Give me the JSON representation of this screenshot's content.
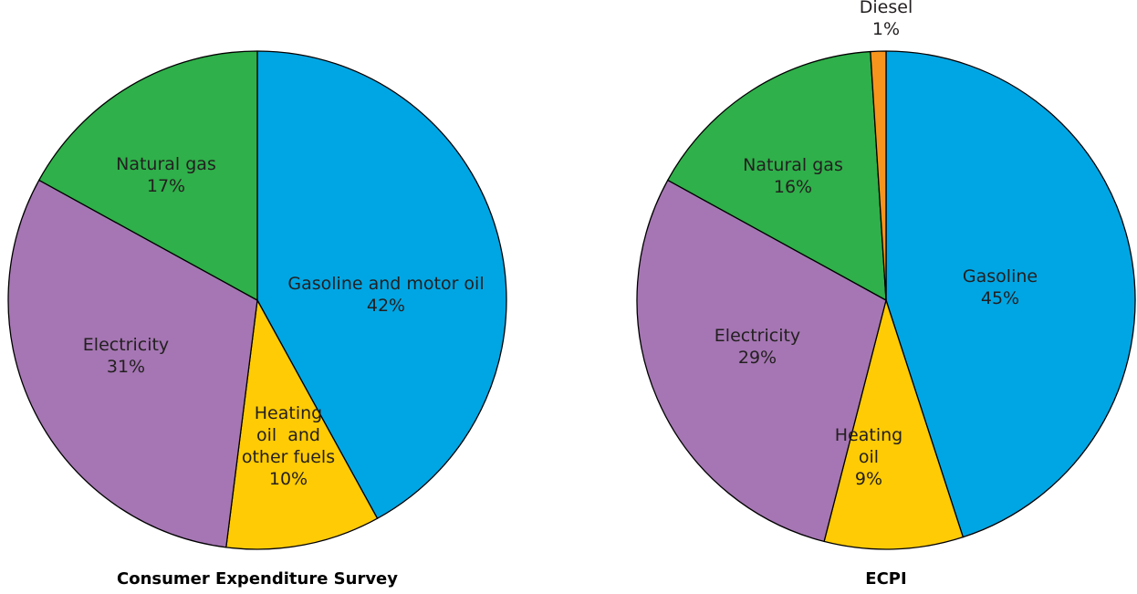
{
  "chart_data": [
    {
      "type": "pie",
      "title": "Consumer Expenditure Survey",
      "slices": [
        {
          "lines": [
            "Gasoline and motor oil",
            "42%"
          ],
          "value": 42,
          "color": "#00a6e3"
        },
        {
          "lines": [
            "Heating",
            "oil  and",
            "other fuels",
            "10%"
          ],
          "value": 10,
          "color": "#ffcb05"
        },
        {
          "lines": [
            "Electricity",
            "31%"
          ],
          "value": 31,
          "color": "#a576b3"
        },
        {
          "lines": [
            "Natural gas",
            "17%"
          ],
          "value": 17,
          "color": "#2fb04a"
        }
      ]
    },
    {
      "type": "pie",
      "title": "ECPI",
      "slices": [
        {
          "lines": [
            "Gasoline",
            "45%"
          ],
          "value": 45,
          "color": "#00a6e3"
        },
        {
          "lines": [
            "Heating",
            "oil",
            "9%"
          ],
          "value": 9,
          "color": "#ffcb05"
        },
        {
          "lines": [
            "Electricity",
            "29%"
          ],
          "value": 29,
          "color": "#a576b3"
        },
        {
          "lines": [
            "Natural gas",
            "16%"
          ],
          "value": 16,
          "color": "#2fb04a"
        },
        {
          "lines": [
            "Diesel",
            "1%"
          ],
          "value": 1,
          "color": "#f7941d"
        }
      ]
    }
  ]
}
